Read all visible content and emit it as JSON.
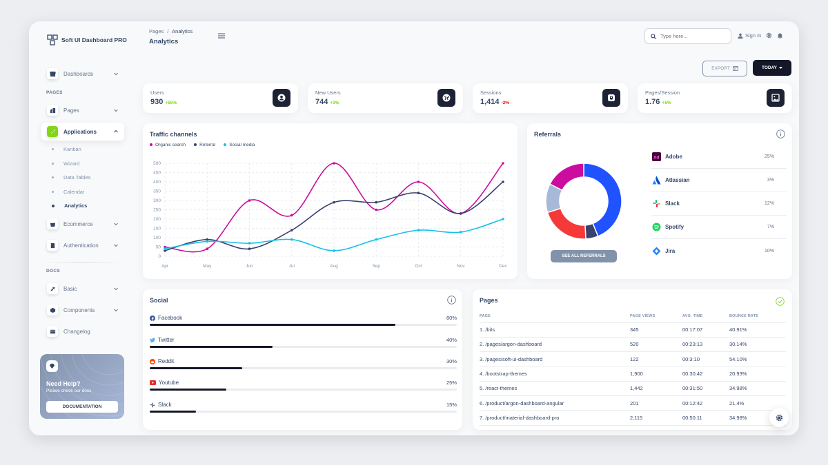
{
  "brand": {
    "name": "Soft UI Dashboard PRO"
  },
  "breadcrumb": {
    "root": "Pages",
    "sep": "/",
    "current": "Analytics"
  },
  "page_title": "Analytics",
  "search": {
    "placeholder": "Type here..."
  },
  "signin_label": "Sign In",
  "sidebar": {
    "dashboards": "Dashboards",
    "pages_section": "PAGES",
    "pages": "Pages",
    "applications": "Applications",
    "sub": [
      "Kanban",
      "Wizard",
      "Data Tables",
      "Calendar",
      "Analytics"
    ],
    "ecommerce": "Ecommerce",
    "authentication": "Authentication",
    "docs_section": "DOCS",
    "basic": "Basic",
    "components": "Components",
    "changelog": "Changelog"
  },
  "help": {
    "title": "Need Help?",
    "subtitle": "Please check our docs",
    "button": "DOCUMENTATION"
  },
  "toolbar": {
    "export": "EXPORT",
    "today": "TODAY"
  },
  "stats": [
    {
      "label": "Users",
      "value": "930",
      "change": "+55%",
      "change_color": "#82d616"
    },
    {
      "label": "New Users",
      "value": "744",
      "change": "+3%",
      "change_color": "#82d616"
    },
    {
      "label": "Sessions",
      "value": "1,414",
      "change": "-2%",
      "change_color": "#ea0606"
    },
    {
      "label": "Pages/Session",
      "value": "1.76",
      "change": "+5%",
      "change_color": "#82d616"
    }
  ],
  "traffic": {
    "title": "Traffic channels",
    "legend": [
      "Organic search",
      "Referral",
      "Social media"
    ]
  },
  "chart_data": {
    "type": "line",
    "categories": [
      "Apr",
      "May",
      "Jun",
      "Jul",
      "Aug",
      "Sep",
      "Oct",
      "Nov",
      "Dec"
    ],
    "ylim": [
      0,
      500
    ],
    "yticks": [
      0,
      50,
      100,
      150,
      200,
      250,
      300,
      350,
      400,
      450,
      500
    ],
    "series": [
      {
        "name": "Organic search",
        "color": "#cb0c9f",
        "values": [
          50,
          40,
          300,
          220,
          500,
          250,
          400,
          230,
          500
        ]
      },
      {
        "name": "Referral",
        "color": "#3a416f",
        "values": [
          30,
          90,
          40,
          140,
          290,
          290,
          340,
          230,
          400
        ]
      },
      {
        "name": "Social media",
        "color": "#17c1e8",
        "values": [
          40,
          80,
          70,
          90,
          30,
          90,
          140,
          130,
          200
        ]
      }
    ]
  },
  "referrals": {
    "title": "Referrals",
    "button": "SEE ALL REFERRALS",
    "items": [
      {
        "name": "Adobe",
        "pct": "25%",
        "value": 25,
        "color": "#2152ff"
      },
      {
        "name": "Atlassian",
        "pct": "3%",
        "value": 3,
        "color": "#3a416f"
      },
      {
        "name": "Slack",
        "pct": "12%",
        "value": 12,
        "color": "#f53939"
      },
      {
        "name": "Spotify",
        "pct": "7%",
        "value": 7,
        "color": "#a8b8d8"
      },
      {
        "name": "Jira",
        "pct": "10%",
        "value": 10,
        "color": "#cb0c9f"
      }
    ]
  },
  "social": {
    "title": "Social",
    "items": [
      {
        "name": "Facebook",
        "pct": "80%",
        "value": 80
      },
      {
        "name": "Twitter",
        "pct": "40%",
        "value": 40
      },
      {
        "name": "Reddit",
        "pct": "30%",
        "value": 30
      },
      {
        "name": "Youtube",
        "pct": "25%",
        "value": 25
      },
      {
        "name": "Slack",
        "pct": "15%",
        "value": 15
      }
    ]
  },
  "pages_table": {
    "title": "Pages",
    "headers": [
      "PAGE",
      "PAGE VIEWS",
      "AVG. TIME",
      "BOUNCE RATE"
    ],
    "rows": [
      [
        "1. /bits",
        "345",
        "00:17:07",
        "40.91%"
      ],
      [
        "2. /pages/argon-dashboard",
        "520",
        "00:23:13",
        "30.14%"
      ],
      [
        "3. /pages/soft-ui-dashboard",
        "122",
        "00:3:10",
        "54.10%"
      ],
      [
        "4. /bootstrap-themes",
        "1,900",
        "00:30:42",
        "20.93%"
      ],
      [
        "5. /react-themes",
        "1,442",
        "00:31:50",
        "34.98%"
      ],
      [
        "6. /product/argon-dashboard-angular",
        "201",
        "00:12:42",
        "21.4%"
      ],
      [
        "7. /product/material-dashboard-pro",
        "2,115",
        "00:50:11",
        "34.98%"
      ]
    ]
  }
}
